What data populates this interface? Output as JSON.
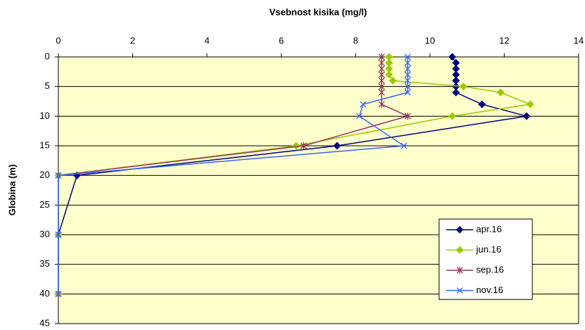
{
  "chart_data": {
    "type": "line",
    "title": "Vsebnost kisika (mg/l)",
    "y_label": "Globina (m)",
    "y": [
      0,
      1,
      2,
      3,
      4,
      5,
      6,
      8,
      10,
      15,
      20,
      30,
      40
    ],
    "series": [
      {
        "name": "apr.16",
        "color": "#000080",
        "marker": "diamond",
        "x": [
          10.6,
          10.7,
          10.7,
          10.7,
          10.7,
          10.7,
          10.7,
          11.4,
          12.6,
          7.5,
          0.5,
          0,
          0
        ]
      },
      {
        "name": "jun.16",
        "color": "#99cc00",
        "marker": "diamond",
        "x": [
          8.9,
          8.9,
          8.9,
          8.9,
          9.0,
          10.9,
          11.9,
          12.7,
          10.6,
          6.4,
          0,
          0,
          0
        ]
      },
      {
        "name": "sep.16",
        "color": "#993366",
        "marker": "asterisk",
        "x": [
          8.7,
          8.7,
          8.7,
          8.7,
          8.7,
          8.7,
          8.7,
          8.7,
          9.4,
          6.6,
          0,
          0,
          0
        ]
      },
      {
        "name": "nov.16",
        "color": "#3366ff",
        "marker": "x",
        "x": [
          9.4,
          9.4,
          9.4,
          9.4,
          9.4,
          9.4,
          9.4,
          8.2,
          8.1,
          9.3,
          0,
          0,
          0
        ]
      }
    ],
    "xlim": [
      0,
      14
    ],
    "xticks": [
      0,
      2,
      4,
      6,
      8,
      10,
      12,
      14
    ],
    "ylim": [
      0,
      45
    ],
    "yticks": [
      0,
      5,
      10,
      15,
      20,
      25,
      30,
      35,
      40,
      45
    ],
    "y_inverted": true,
    "x_axis_position": "top",
    "grid": true,
    "plot_background": "#ffffcc"
  }
}
